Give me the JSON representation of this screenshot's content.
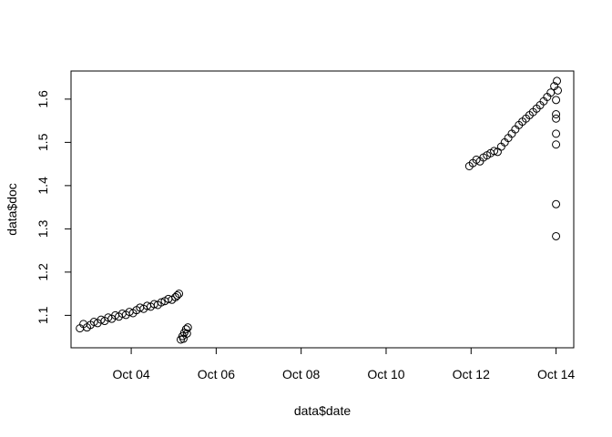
{
  "chart_data": {
    "type": "scatter",
    "title": "",
    "xlabel": "data$date",
    "ylabel": "data$doc",
    "grid": false,
    "legend": "none",
    "marker": "open-circle",
    "point_color": "#000000",
    "xlim": [
      "2023-10-02T14:00",
      "2023-10-14T10:00"
    ],
    "ylim": [
      1.025,
      1.665
    ],
    "x_ticks": [
      {
        "value": "2023-10-04",
        "label": "Oct 04"
      },
      {
        "value": "2023-10-06",
        "label": "Oct 06"
      },
      {
        "value": "2023-10-08",
        "label": "Oct 08"
      },
      {
        "value": "2023-10-10",
        "label": "Oct 10"
      },
      {
        "value": "2023-10-12",
        "label": "Oct 12"
      },
      {
        "value": "2023-10-14",
        "label": "Oct 14"
      }
    ],
    "y_ticks": [
      {
        "value": 1.1,
        "label": "1.1"
      },
      {
        "value": 1.2,
        "label": "1.2"
      },
      {
        "value": 1.3,
        "label": "1.3"
      },
      {
        "value": 1.4,
        "label": "1.4"
      },
      {
        "value": 1.5,
        "label": "1.5"
      },
      {
        "value": 1.6,
        "label": "1.6"
      }
    ],
    "series": [
      {
        "points": [
          {
            "x": "2023-10-02T19:00",
            "y": 1.07
          },
          {
            "x": "2023-10-02T21:00",
            "y": 1.08
          },
          {
            "x": "2023-10-02T23:00",
            "y": 1.072
          },
          {
            "x": "2023-10-03T01:00",
            "y": 1.078
          },
          {
            "x": "2023-10-03T03:00",
            "y": 1.085
          },
          {
            "x": "2023-10-03T05:00",
            "y": 1.082
          },
          {
            "x": "2023-10-03T07:00",
            "y": 1.09
          },
          {
            "x": "2023-10-03T09:00",
            "y": 1.087
          },
          {
            "x": "2023-10-03T11:00",
            "y": 1.095
          },
          {
            "x": "2023-10-03T13:00",
            "y": 1.092
          },
          {
            "x": "2023-10-03T15:00",
            "y": 1.1
          },
          {
            "x": "2023-10-03T17:00",
            "y": 1.097
          },
          {
            "x": "2023-10-03T19:00",
            "y": 1.104
          },
          {
            "x": "2023-10-03T21:00",
            "y": 1.101
          },
          {
            "x": "2023-10-03T23:00",
            "y": 1.108
          },
          {
            "x": "2023-10-04T01:00",
            "y": 1.105
          },
          {
            "x": "2023-10-04T03:00",
            "y": 1.112
          },
          {
            "x": "2023-10-04T05:00",
            "y": 1.118
          },
          {
            "x": "2023-10-04T07:00",
            "y": 1.115
          },
          {
            "x": "2023-10-04T09:00",
            "y": 1.122
          },
          {
            "x": "2023-10-04T11:00",
            "y": 1.12
          },
          {
            "x": "2023-10-04T13:00",
            "y": 1.126
          },
          {
            "x": "2023-10-04T15:00",
            "y": 1.124
          },
          {
            "x": "2023-10-04T17:00",
            "y": 1.13
          },
          {
            "x": "2023-10-04T19:00",
            "y": 1.133
          },
          {
            "x": "2023-10-04T21:00",
            "y": 1.138
          },
          {
            "x": "2023-10-04T23:00",
            "y": 1.136
          },
          {
            "x": "2023-10-05T01:00",
            "y": 1.142
          },
          {
            "x": "2023-10-05T02:00",
            "y": 1.146
          },
          {
            "x": "2023-10-05T03:00",
            "y": 1.15
          },
          {
            "x": "2023-10-05T04:00",
            "y": 1.044
          },
          {
            "x": "2023-10-05T05:00",
            "y": 1.052
          },
          {
            "x": "2023-10-05T06:00",
            "y": 1.06
          },
          {
            "x": "2023-10-05T07:00",
            "y": 1.068
          },
          {
            "x": "2023-10-05T08:00",
            "y": 1.072
          },
          {
            "x": "2023-10-05T05:30",
            "y": 1.046
          },
          {
            "x": "2023-10-05T07:30",
            "y": 1.058
          },
          {
            "x": "2023-10-11T23:00",
            "y": 1.445
          },
          {
            "x": "2023-10-12T01:00",
            "y": 1.452
          },
          {
            "x": "2023-10-12T03:00",
            "y": 1.46
          },
          {
            "x": "2023-10-12T05:00",
            "y": 1.456
          },
          {
            "x": "2023-10-12T07:00",
            "y": 1.465
          },
          {
            "x": "2023-10-12T09:00",
            "y": 1.47
          },
          {
            "x": "2023-10-12T11:00",
            "y": 1.475
          },
          {
            "x": "2023-10-12T13:00",
            "y": 1.48
          },
          {
            "x": "2023-10-12T15:00",
            "y": 1.478
          },
          {
            "x": "2023-10-12T17:00",
            "y": 1.49
          },
          {
            "x": "2023-10-12T19:00",
            "y": 1.5
          },
          {
            "x": "2023-10-12T21:00",
            "y": 1.51
          },
          {
            "x": "2023-10-12T23:00",
            "y": 1.52
          },
          {
            "x": "2023-10-13T01:00",
            "y": 1.53
          },
          {
            "x": "2023-10-13T03:00",
            "y": 1.54
          },
          {
            "x": "2023-10-13T05:00",
            "y": 1.548
          },
          {
            "x": "2023-10-13T07:00",
            "y": 1.555
          },
          {
            "x": "2023-10-13T09:00",
            "y": 1.563
          },
          {
            "x": "2023-10-13T11:00",
            "y": 1.57
          },
          {
            "x": "2023-10-13T13:00",
            "y": 1.578
          },
          {
            "x": "2023-10-13T15:00",
            "y": 1.586
          },
          {
            "x": "2023-10-13T17:00",
            "y": 1.595
          },
          {
            "x": "2023-10-13T19:00",
            "y": 1.605
          },
          {
            "x": "2023-10-13T21:00",
            "y": 1.615
          },
          {
            "x": "2023-10-13T23:00",
            "y": 1.63
          },
          {
            "x": "2023-10-14T00:30",
            "y": 1.642
          },
          {
            "x": "2023-10-14T01:00",
            "y": 1.62
          },
          {
            "x": "2023-10-14T00:00",
            "y": 1.598
          },
          {
            "x": "2023-10-14T00:00",
            "y": 1.565
          },
          {
            "x": "2023-10-14T00:00",
            "y": 1.555
          },
          {
            "x": "2023-10-14T00:00",
            "y": 1.52
          },
          {
            "x": "2023-10-14T00:00",
            "y": 1.495
          },
          {
            "x": "2023-10-14T00:00",
            "y": 1.357
          },
          {
            "x": "2023-10-14T00:00",
            "y": 1.283
          }
        ]
      }
    ]
  }
}
